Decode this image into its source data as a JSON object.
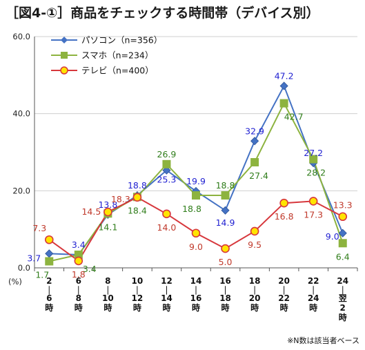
{
  "title": "［図4-①］商品をチェックする時間帯（デバイス別）",
  "note": "※N数は該当者ベース",
  "chart_data": {
    "type": "line",
    "title": "［図4-①］商品をチェックする時間帯（デバイス別）",
    "y_unit": "(%)",
    "ylim": [
      0,
      60
    ],
    "yticks": [
      "0.0",
      "20.0",
      "40.0",
      "60.0"
    ],
    "categories": [
      [
        "2",
        "｜",
        "6",
        "時"
      ],
      [
        "6",
        "｜",
        "8",
        "時"
      ],
      [
        "8",
        "｜",
        "10",
        "時"
      ],
      [
        "10",
        "｜",
        "12",
        "時"
      ],
      [
        "12",
        "｜",
        "14",
        "時"
      ],
      [
        "14",
        "｜",
        "16",
        "時"
      ],
      [
        "16",
        "｜",
        "18",
        "時"
      ],
      [
        "18",
        "｜",
        "20",
        "時"
      ],
      [
        "20",
        "｜",
        "22",
        "時"
      ],
      [
        "22",
        "｜",
        "24",
        "時"
      ],
      [
        "24",
        "｜",
        "翌",
        "2",
        "時"
      ]
    ],
    "legend_position": "top-left",
    "series": [
      {
        "name": "パソコン（n=356）",
        "color": "#4472C4",
        "label_color": "#1f1fd1",
        "marker": "diamond",
        "values": [
          3.7,
          3.4,
          13.8,
          18.8,
          25.3,
          19.9,
          14.9,
          32.9,
          47.2,
          27.2,
          9.0
        ],
        "labels": [
          "3.7",
          "3.4",
          "13.8",
          "18.8",
          "25.3",
          "19.9",
          "14.9",
          "32.9",
          "47.2",
          "27.2",
          "9.0"
        ]
      },
      {
        "name": "スマホ（n=234）",
        "color": "#8DB33F",
        "label_color": "#2f7d1a",
        "marker": "square",
        "values": [
          1.7,
          3.4,
          14.1,
          18.4,
          26.9,
          18.8,
          18.8,
          27.4,
          42.7,
          28.2,
          6.4
        ],
        "labels": [
          "1.7",
          "3.4",
          "14.1",
          "18.4",
          "26.9",
          "18.8",
          "18.8",
          "27.4",
          "42.7",
          "28.2",
          "6.4"
        ]
      },
      {
        "name": "テレビ（n=400）",
        "color": "#D7373C",
        "label_color": "#c0392b",
        "marker": "circle",
        "marker_fill": "#FFE400",
        "values": [
          7.3,
          1.8,
          14.5,
          18.3,
          14.0,
          9.0,
          5.0,
          9.5,
          16.8,
          17.3,
          13.3
        ],
        "labels": [
          "7.3",
          "1.8",
          "14.5",
          "18.3",
          "14.0",
          "9.0",
          "5.0",
          "9.5",
          "16.8",
          "17.3",
          "13.3"
        ]
      }
    ]
  }
}
